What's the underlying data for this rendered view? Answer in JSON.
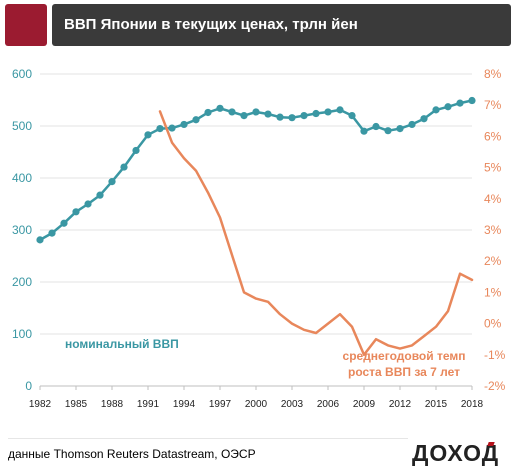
{
  "header": {
    "title": "ВВП Японии в текущих ценах, трлн йен",
    "brand_color": "#9b1b30"
  },
  "footer": {
    "source": "данные Thomson Reuters Datastream, ОЭСР",
    "brand": "ДОХОД"
  },
  "chart_data": {
    "type": "line",
    "x_ticks": [
      "1982",
      "1985",
      "1988",
      "1991",
      "1994",
      "1997",
      "2000",
      "2003",
      "2006",
      "2009",
      "2012",
      "2015",
      "2018"
    ],
    "left_axis": {
      "ticks": [
        "0",
        "100",
        "200",
        "300",
        "400",
        "500",
        "600"
      ],
      "ylim": [
        0,
        600
      ],
      "color": "#3a97a3"
    },
    "right_axis": {
      "ticks": [
        "-2%",
        "-1%",
        "0%",
        "1%",
        "2%",
        "3%",
        "4%",
        "5%",
        "6%",
        "7%",
        "8%"
      ],
      "ylim": [
        -2,
        8
      ],
      "color": "#e8875b"
    },
    "grid": true,
    "series": [
      {
        "name": "номинальный ВВП",
        "axis": "left",
        "color": "#3a97a3",
        "label_lines": [
          "номинальный ВВП"
        ],
        "x": [
          1982,
          1983,
          1984,
          1985,
          1986,
          1987,
          1988,
          1989,
          1990,
          1991,
          1992,
          1993,
          1994,
          1995,
          1996,
          1997,
          1998,
          1999,
          2000,
          2001,
          2002,
          2003,
          2004,
          2005,
          2006,
          2007,
          2008,
          2009,
          2010,
          2011,
          2012,
          2013,
          2014,
          2015,
          2016,
          2017,
          2018
        ],
        "values": [
          281,
          294,
          313,
          335,
          350,
          367,
          393,
          421,
          453,
          483,
          495,
          496,
          503,
          512,
          526,
          534,
          527,
          520,
          527,
          523,
          517,
          516,
          520,
          524,
          527,
          531,
          520,
          490,
          499,
          491,
          495,
          503,
          514,
          531,
          537,
          544,
          549
        ]
      },
      {
        "name": "среднегодовой темп роста ВВП за 7 лет",
        "axis": "right",
        "color": "#e8875b",
        "label_lines": [
          "среднегодовой темп",
          "роста ВВП за 7 лет"
        ],
        "x": [
          1992,
          1993,
          1994,
          1995,
          1996,
          1997,
          1998,
          1999,
          2000,
          2001,
          2002,
          2003,
          2004,
          2005,
          2006,
          2007,
          2008,
          2009,
          2010,
          2011,
          2012,
          2013,
          2014,
          2015,
          2016,
          2017,
          2018
        ],
        "values": [
          6.8,
          5.8,
          5.3,
          4.9,
          4.2,
          3.4,
          2.2,
          1.0,
          0.8,
          0.7,
          0.3,
          0.0,
          -0.2,
          -0.3,
          0.0,
          0.3,
          -0.1,
          -1.0,
          -0.5,
          -0.7,
          -0.8,
          -0.7,
          -0.4,
          -0.1,
          0.4,
          1.6,
          1.4
        ]
      }
    ]
  }
}
